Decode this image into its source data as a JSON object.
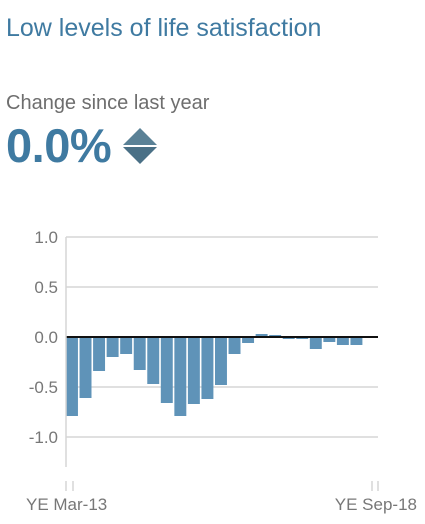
{
  "title": "Low levels of life satisfaction",
  "change": {
    "label": "Change since last year",
    "value": "0.0%",
    "indicator_icon": "no-change-diamond-icon"
  },
  "colors": {
    "title": "#3f7aa1",
    "bar": "#5f93b8",
    "grid": "#d6d6d6",
    "zero_line": "#111111",
    "tick_text": "#777777"
  },
  "chart_data": {
    "type": "bar",
    "title": "",
    "xlabel": "",
    "ylabel": "",
    "ylim": [
      -1.3,
      1.0
    ],
    "yticks": [
      "1.0",
      "0.5",
      "0.0",
      "-0.5",
      "-1.0"
    ],
    "ytick_values": [
      1.0,
      0.5,
      0.0,
      -0.5,
      -1.0
    ],
    "x_first_label": "YE Mar-13",
    "x_last_label": "YE Sep-18",
    "grid": true,
    "values": [
      -0.79,
      -0.61,
      -0.34,
      -0.2,
      -0.17,
      -0.33,
      -0.47,
      -0.66,
      -0.79,
      -0.67,
      -0.62,
      -0.48,
      -0.17,
      -0.06,
      0.03,
      0.02,
      -0.02,
      -0.02,
      -0.12,
      -0.05,
      -0.08,
      -0.08
    ]
  }
}
